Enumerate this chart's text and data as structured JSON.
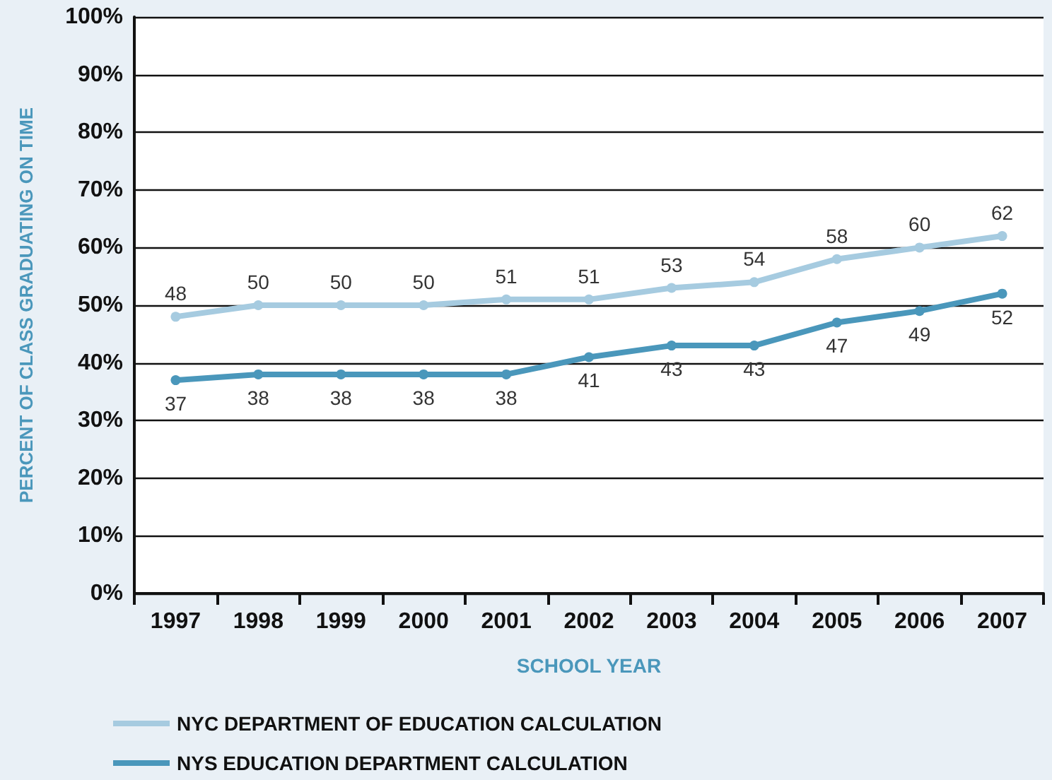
{
  "chart_data": {
    "type": "line",
    "xlabel": "SCHOOL YEAR",
    "ylabel": "PERCENT OF CLASS GRADUATING ON TIME",
    "categories": [
      "1997",
      "1998",
      "1999",
      "2000",
      "2001",
      "2002",
      "2003",
      "2004",
      "2005",
      "2006",
      "2007"
    ],
    "series": [
      {
        "name": "NYC DEPARTMENT OF EDUCATION CALCULATION",
        "color": "#a6cbe0",
        "values": [
          48,
          50,
          50,
          50,
          51,
          51,
          53,
          54,
          58,
          60,
          62
        ]
      },
      {
        "name": "NYS EDUCATION DEPARTMENT CALCULATION",
        "color": "#4a97bb",
        "values": [
          37,
          38,
          38,
          38,
          38,
          41,
          43,
          43,
          47,
          49,
          52
        ]
      }
    ],
    "ylim": [
      0,
      100
    ],
    "yticks": [
      {
        "value": 0,
        "label": "0%"
      },
      {
        "value": 10,
        "label": "10%"
      },
      {
        "value": 20,
        "label": "20%"
      },
      {
        "value": 30,
        "label": "30%"
      },
      {
        "value": 40,
        "label": "40%"
      },
      {
        "value": 50,
        "label": "50%"
      },
      {
        "value": 60,
        "label": "60%"
      },
      {
        "value": 70,
        "label": "70%"
      },
      {
        "value": 80,
        "label": "80%"
      },
      {
        "value": 90,
        "label": "90%"
      },
      {
        "value": 100,
        "label": "100%"
      }
    ],
    "grid": "y",
    "legend": "bottom",
    "marker": "circle",
    "line_style": "solid",
    "data_labels": true
  }
}
